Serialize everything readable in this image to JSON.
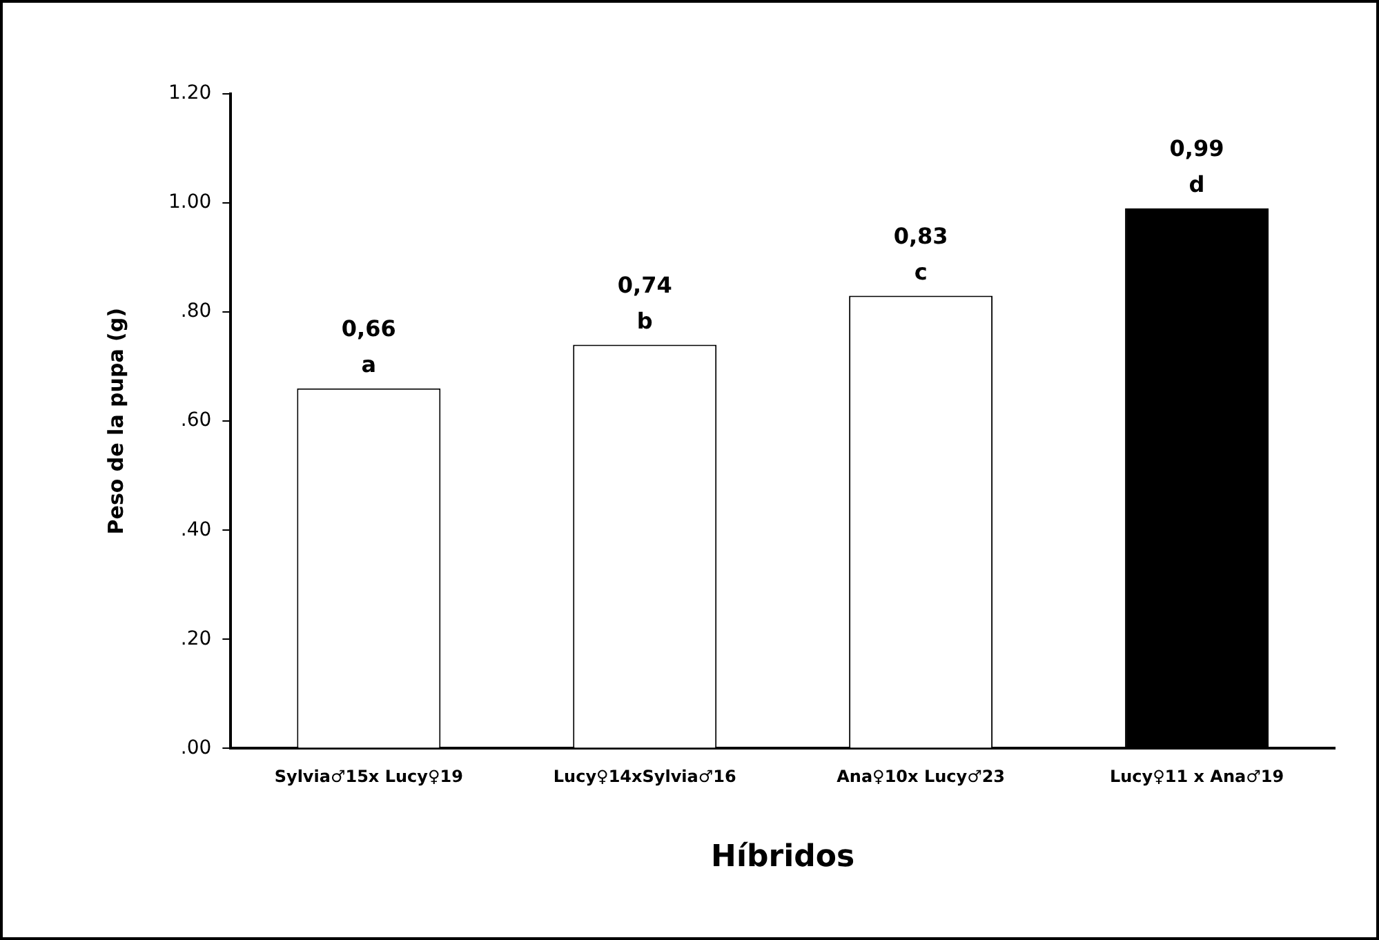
{
  "chart_data": {
    "type": "bar",
    "xlabel": "Híbridos",
    "ylabel": "Peso de la pupa (g)",
    "categories": [
      "Sylvia♂15x Lucy♀19",
      "Lucy♀14xSylvia♂16",
      "Ana♀10x Lucy♂23",
      "Lucy♀11 x Ana♂19"
    ],
    "values": [
      0.66,
      0.74,
      0.83,
      0.99
    ],
    "colors": [
      "#ffffff",
      "#ffffff",
      "#ffffff",
      "#000000"
    ],
    "value_labels": [
      "0,66",
      "0,74",
      "0,83",
      "0,99"
    ],
    "annotations": [
      {
        "text": "a",
        "x": "Sylvia♂15x Lucy♀19",
        "y": 0.66
      },
      {
        "text": "b",
        "x": "Lucy♀14xSylvia♂16",
        "y": 0.74
      },
      {
        "text": "c",
        "x": "Ana♀10x Lucy♂23",
        "y": 0.83
      },
      {
        "text": "d",
        "x": "Lucy♀11 x Ana♂19",
        "y": 0.99
      }
    ],
    "ylim": [
      0,
      1.2
    ],
    "yticks": [
      {
        "value": 0,
        "label": ".00"
      },
      {
        "value": 0.2,
        "label": ".20"
      },
      {
        "value": 0.4,
        "label": ".40"
      },
      {
        "value": 0.6,
        "label": ".60"
      },
      {
        "value": 0.8,
        "label": ".80"
      },
      {
        "value": 1,
        "label": "1.00"
      },
      {
        "value": 1.2,
        "label": "1.20"
      }
    ],
    "grid": false,
    "legend": false
  }
}
